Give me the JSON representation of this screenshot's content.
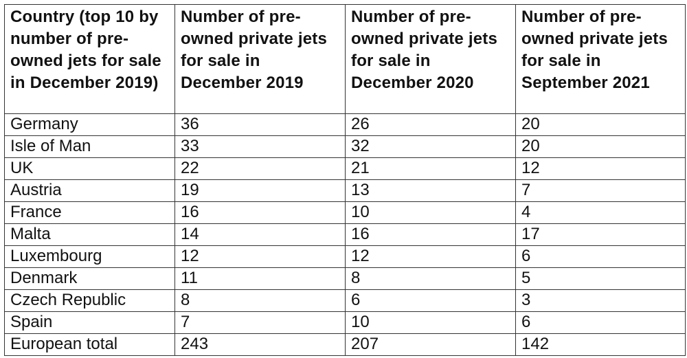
{
  "table": {
    "headers": [
      "Country (top 10 by number of pre-owned jets for sale in December 2019)",
      "Number of pre-owned private jets for sale in December 2019",
      "Number of pre-owned private jets for sale in December 2020",
      "Number of pre-owned private jets for sale in September 2021"
    ],
    "rows": [
      [
        "Germany",
        "36",
        "26",
        "20"
      ],
      [
        "Isle of Man",
        "33",
        "32",
        "20"
      ],
      [
        "UK",
        "22",
        "21",
        "12"
      ],
      [
        "Austria",
        "19",
        "13",
        "7"
      ],
      [
        "France",
        "16",
        "10",
        "4"
      ],
      [
        "Malta",
        "14",
        "16",
        "17"
      ],
      [
        "Luxembourg",
        "12",
        "12",
        "6"
      ],
      [
        "Denmark",
        "11",
        "8",
        "5"
      ],
      [
        "Czech Republic",
        "8",
        "6",
        "3"
      ],
      [
        "Spain",
        "7",
        "10",
        "6"
      ],
      [
        "European total",
        "243",
        "207",
        "142"
      ]
    ]
  }
}
